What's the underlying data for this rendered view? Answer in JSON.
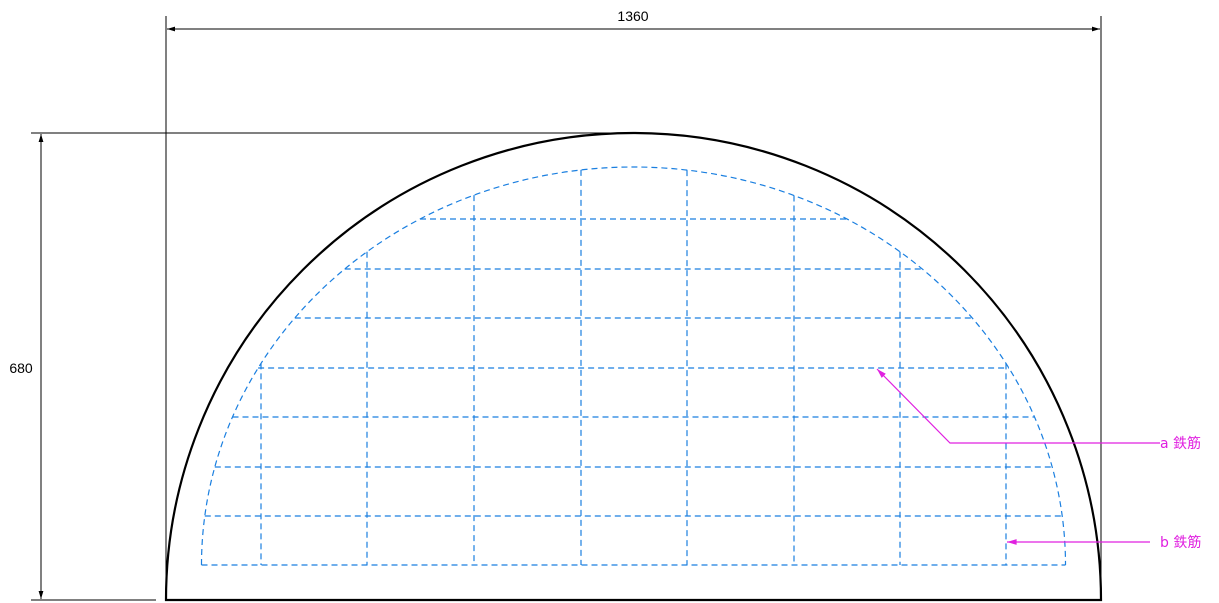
{
  "dimensions": {
    "width": {
      "value": "1360"
    },
    "height": {
      "value": "680"
    }
  },
  "callouts": {
    "a": {
      "label": "a 鉄筋"
    },
    "b": {
      "label": "b 鉄筋"
    }
  },
  "colors": {
    "outline": "#000000",
    "rebar": "#1a7fe0",
    "callout": "#e020e0"
  }
}
